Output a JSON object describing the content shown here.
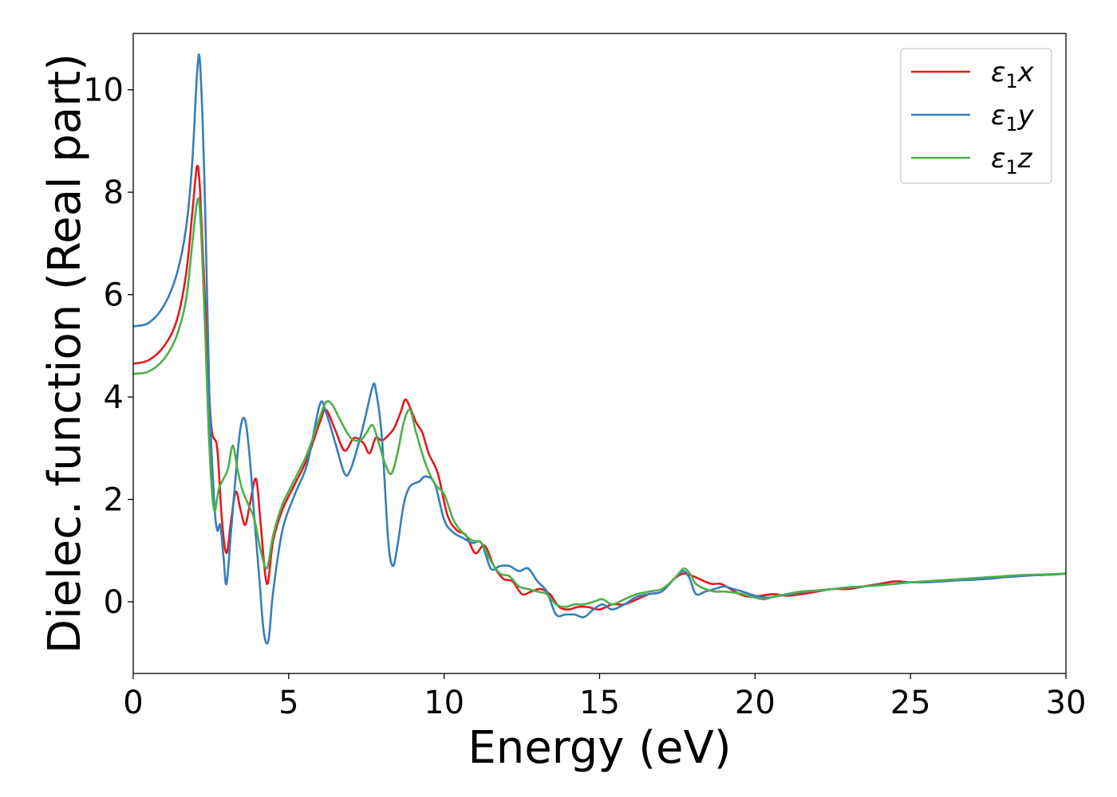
{
  "chart_data": {
    "type": "line",
    "title": "",
    "xlabel": "Energy (eV)",
    "ylabel": "Dielec. function (Real part)",
    "xlim": [
      0,
      30
    ],
    "ylim": [
      -1.4,
      11.1
    ],
    "xticks": [
      0,
      5,
      10,
      15,
      20,
      25,
      30
    ],
    "xtick_labels": [
      "0",
      "5",
      "10",
      "15",
      "20",
      "25",
      "30"
    ],
    "yticks": [
      0,
      2,
      4,
      6,
      8,
      10
    ],
    "ytick_labels": [
      "0",
      "2",
      "4",
      "6",
      "8",
      "10"
    ],
    "grid": false,
    "legend_position": "top-right",
    "series": [
      {
        "name": "ε₁x",
        "legend_main": "ε",
        "legend_sub": "1",
        "legend_var": "x",
        "color": "#e31a1c",
        "x": [
          0,
          0.5,
          1.0,
          1.4,
          1.7,
          1.9,
          2.05,
          2.15,
          2.3,
          2.5,
          2.7,
          2.85,
          3.0,
          3.15,
          3.3,
          3.45,
          3.6,
          3.75,
          3.95,
          4.1,
          4.3,
          4.5,
          4.8,
          5.2,
          5.6,
          6.0,
          6.2,
          6.5,
          6.8,
          7.1,
          7.4,
          7.6,
          7.8,
          8.0,
          8.2,
          8.4,
          8.6,
          8.75,
          8.9,
          9.1,
          9.3,
          9.5,
          9.8,
          10.1,
          10.4,
          10.7,
          11.0,
          11.3,
          11.6,
          11.9,
          12.2,
          12.5,
          12.8,
          13.1,
          13.4,
          13.7,
          14.0,
          14.3,
          14.6,
          15.0,
          15.4,
          15.8,
          16.2,
          16.6,
          17.0,
          17.4,
          17.7,
          18.0,
          18.3,
          18.6,
          18.9,
          19.2,
          19.5,
          19.8,
          20.2,
          20.6,
          21.0,
          21.5,
          22.0,
          22.5,
          23.0,
          23.5,
          24.0,
          24.5,
          25.0,
          25.5,
          26.0,
          26.5,
          27.0,
          27.5,
          28.0,
          28.5,
          29.0,
          29.5,
          30.0
        ],
        "y": [
          4.65,
          4.72,
          5.0,
          5.5,
          6.4,
          7.6,
          8.5,
          8.0,
          6.0,
          3.5,
          3.0,
          1.6,
          0.95,
          1.6,
          2.15,
          1.8,
          1.5,
          1.9,
          2.4,
          1.5,
          0.35,
          1.2,
          1.8,
          2.3,
          2.8,
          3.5,
          3.75,
          3.35,
          2.95,
          3.2,
          3.1,
          2.9,
          3.2,
          3.15,
          3.25,
          3.4,
          3.7,
          3.95,
          3.8,
          3.5,
          3.3,
          2.9,
          2.5,
          1.7,
          1.4,
          1.3,
          0.95,
          1.1,
          0.7,
          0.45,
          0.4,
          0.15,
          0.2,
          0.25,
          0.15,
          -0.1,
          -0.15,
          -0.1,
          -0.1,
          -0.15,
          -0.05,
          -0.05,
          0.05,
          0.15,
          0.2,
          0.45,
          0.55,
          0.5,
          0.42,
          0.35,
          0.35,
          0.25,
          0.15,
          0.1,
          0.12,
          0.15,
          0.12,
          0.15,
          0.2,
          0.25,
          0.25,
          0.3,
          0.35,
          0.4,
          0.38,
          0.4,
          0.4,
          0.42,
          0.45,
          0.45,
          0.48,
          0.5,
          0.52,
          0.53,
          0.55
        ]
      },
      {
        "name": "ε₁y",
        "legend_main": "ε",
        "legend_sub": "1",
        "legend_var": "y",
        "color": "#377eb8",
        "x": [
          0,
          0.5,
          1.0,
          1.4,
          1.7,
          1.9,
          2.05,
          2.15,
          2.3,
          2.45,
          2.6,
          2.7,
          2.8,
          2.9,
          3.0,
          3.15,
          3.3,
          3.45,
          3.6,
          3.75,
          3.9,
          4.05,
          4.2,
          4.35,
          4.5,
          4.8,
          5.2,
          5.6,
          6.0,
          6.2,
          6.5,
          6.8,
          7.0,
          7.3,
          7.5,
          7.7,
          7.8,
          8.0,
          8.2,
          8.35,
          8.5,
          8.7,
          8.9,
          9.2,
          9.4,
          9.7,
          10.0,
          10.3,
          10.6,
          10.9,
          11.2,
          11.5,
          11.8,
          12.1,
          12.4,
          12.7,
          13.0,
          13.3,
          13.6,
          13.9,
          14.2,
          14.5,
          14.8,
          15.1,
          15.4,
          15.8,
          16.2,
          16.6,
          17.0,
          17.4,
          17.7,
          17.9,
          18.1,
          18.4,
          18.7,
          19.0,
          19.3,
          19.6,
          20.0,
          20.4,
          20.8,
          21.2,
          21.6,
          22.0,
          22.5,
          23.0,
          23.5,
          24.0,
          24.5,
          25.0,
          25.5,
          26.0,
          26.5,
          27.0,
          27.5,
          28.0,
          28.5,
          29.0,
          29.5,
          30.0
        ],
        "y": [
          5.38,
          5.45,
          5.8,
          6.4,
          7.3,
          8.6,
          10.3,
          10.5,
          8.0,
          4.0,
          2.0,
          1.4,
          1.5,
          0.9,
          0.35,
          1.4,
          2.5,
          3.4,
          3.55,
          2.8,
          1.6,
          0.5,
          -0.6,
          -0.75,
          0.2,
          1.4,
          2.1,
          2.7,
          3.85,
          3.7,
          3.1,
          2.5,
          2.6,
          3.2,
          3.7,
          4.2,
          4.15,
          3.2,
          1.2,
          0.7,
          1.1,
          1.9,
          2.25,
          2.35,
          2.45,
          2.3,
          1.6,
          1.35,
          1.25,
          1.15,
          1.15,
          0.65,
          0.7,
          0.7,
          0.6,
          0.65,
          0.4,
          0.2,
          -0.25,
          -0.25,
          -0.25,
          -0.3,
          -0.15,
          -0.05,
          -0.15,
          -0.05,
          0.1,
          0.15,
          0.2,
          0.45,
          0.6,
          0.45,
          0.15,
          0.2,
          0.25,
          0.3,
          0.25,
          0.2,
          0.12,
          0.08,
          0.12,
          0.15,
          0.2,
          0.22,
          0.25,
          0.28,
          0.3,
          0.33,
          0.35,
          0.38,
          0.38,
          0.4,
          0.42,
          0.43,
          0.45,
          0.48,
          0.5,
          0.52,
          0.53,
          0.55
        ]
      },
      {
        "name": "ε₁z",
        "legend_main": "ε",
        "legend_sub": "1",
        "legend_var": "z",
        "color": "#4daf4a",
        "x": [
          0,
          0.5,
          1.0,
          1.4,
          1.7,
          1.9,
          2.05,
          2.15,
          2.3,
          2.45,
          2.6,
          2.75,
          2.9,
          3.05,
          3.2,
          3.35,
          3.5,
          3.7,
          3.9,
          4.1,
          4.3,
          4.5,
          4.8,
          5.2,
          5.6,
          6.0,
          6.2,
          6.4,
          6.7,
          7.0,
          7.3,
          7.5,
          7.7,
          7.9,
          8.1,
          8.3,
          8.5,
          8.7,
          8.9,
          9.1,
          9.4,
          9.7,
          10.0,
          10.3,
          10.6,
          10.9,
          11.2,
          11.5,
          11.8,
          12.1,
          12.4,
          12.7,
          13.0,
          13.3,
          13.6,
          13.9,
          14.2,
          14.5,
          14.8,
          15.1,
          15.4,
          15.8,
          16.2,
          16.6,
          17.0,
          17.4,
          17.7,
          17.9,
          18.1,
          18.4,
          18.7,
          19.0,
          19.3,
          19.6,
          20.0,
          20.3,
          20.6,
          21.0,
          21.5,
          22.0,
          22.5,
          23.0,
          23.5,
          24.0,
          24.5,
          25.0,
          25.5,
          26.0,
          26.5,
          27.0,
          27.5,
          28.0,
          28.5,
          29.0,
          29.5,
          30.0
        ],
        "y": [
          4.45,
          4.5,
          4.75,
          5.2,
          5.9,
          7.0,
          7.8,
          7.6,
          5.5,
          3.0,
          1.8,
          2.2,
          2.4,
          2.6,
          3.05,
          2.6,
          2.2,
          1.9,
          1.6,
          1.0,
          0.65,
          1.3,
          1.9,
          2.4,
          2.9,
          3.6,
          3.9,
          3.85,
          3.5,
          3.2,
          3.15,
          3.3,
          3.45,
          3.1,
          2.7,
          2.5,
          2.9,
          3.5,
          3.75,
          3.3,
          2.7,
          2.3,
          2.1,
          1.6,
          1.35,
          1.2,
          1.15,
          0.8,
          0.55,
          0.5,
          0.3,
          0.25,
          0.2,
          0.15,
          -0.05,
          -0.1,
          -0.05,
          -0.05,
          0.0,
          0.05,
          -0.05,
          0.05,
          0.15,
          0.2,
          0.25,
          0.45,
          0.65,
          0.55,
          0.35,
          0.25,
          0.2,
          0.2,
          0.18,
          0.15,
          0.08,
          0.05,
          0.1,
          0.15,
          0.2,
          0.22,
          0.25,
          0.28,
          0.3,
          0.32,
          0.35,
          0.38,
          0.4,
          0.42,
          0.44,
          0.46,
          0.48,
          0.5,
          0.52,
          0.53,
          0.54,
          0.55
        ]
      }
    ]
  }
}
